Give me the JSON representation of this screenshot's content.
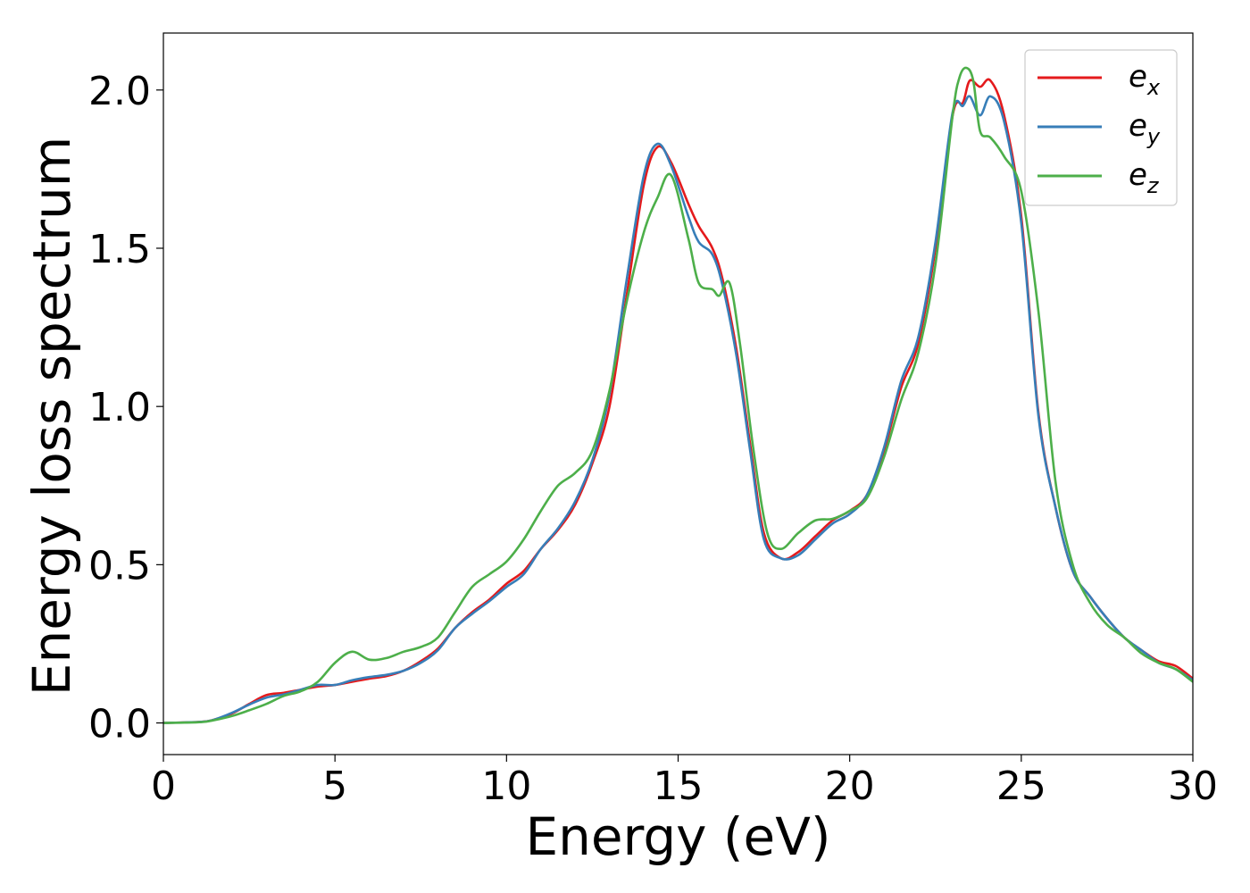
{
  "chart_data": {
    "type": "line",
    "title": "",
    "xlabel": "Energy (eV)",
    "ylabel": "Energy loss spectrum",
    "xlim": [
      0,
      30
    ],
    "ylim": [
      -0.1,
      2.18
    ],
    "x_ticks": [
      "0",
      "5",
      "10",
      "15",
      "20",
      "25",
      "30"
    ],
    "y_ticks": [
      "0.0",
      "0.5",
      "1.0",
      "1.5",
      "2.0"
    ],
    "grid": false,
    "legend_position": "top-right",
    "series": [
      {
        "name": "e",
        "sub": "x",
        "color": "#e41a1c",
        "points": [
          [
            0,
            0
          ],
          [
            1,
            0.003
          ],
          [
            1.4,
            0.008
          ],
          [
            2,
            0.03
          ],
          [
            2.5,
            0.06
          ],
          [
            3,
            0.088
          ],
          [
            3.5,
            0.095
          ],
          [
            4,
            0.105
          ],
          [
            4.5,
            0.115
          ],
          [
            5,
            0.12
          ],
          [
            5.5,
            0.13
          ],
          [
            6,
            0.14
          ],
          [
            6.5,
            0.148
          ],
          [
            7,
            0.165
          ],
          [
            7.5,
            0.195
          ],
          [
            8,
            0.235
          ],
          [
            8.5,
            0.3
          ],
          [
            9,
            0.35
          ],
          [
            9.5,
            0.39
          ],
          [
            10,
            0.44
          ],
          [
            10.5,
            0.48
          ],
          [
            11,
            0.55
          ],
          [
            11.5,
            0.61
          ],
          [
            12,
            0.69
          ],
          [
            12.5,
            0.82
          ],
          [
            13,
            1.0
          ],
          [
            13.5,
            1.35
          ],
          [
            14,
            1.7
          ],
          [
            14.4,
            1.82
          ],
          [
            14.8,
            1.77
          ],
          [
            15.3,
            1.64
          ],
          [
            15.6,
            1.57
          ],
          [
            16,
            1.5
          ],
          [
            16.3,
            1.4
          ],
          [
            16.7,
            1.18
          ],
          [
            17.1,
            0.88
          ],
          [
            17.5,
            0.6
          ],
          [
            18,
            0.52
          ],
          [
            18.5,
            0.54
          ],
          [
            19,
            0.59
          ],
          [
            19.5,
            0.64
          ],
          [
            20,
            0.67
          ],
          [
            20.5,
            0.72
          ],
          [
            21,
            0.86
          ],
          [
            21.5,
            1.06
          ],
          [
            22,
            1.2
          ],
          [
            22.5,
            1.5
          ],
          [
            23,
            1.92
          ],
          [
            23.3,
            1.96
          ],
          [
            23.5,
            2.03
          ],
          [
            23.8,
            2.01
          ],
          [
            24.1,
            2.03
          ],
          [
            24.5,
            1.92
          ],
          [
            25,
            1.6
          ],
          [
            25.5,
            0.98
          ],
          [
            26,
            0.68
          ],
          [
            26.5,
            0.48
          ],
          [
            27,
            0.4
          ],
          [
            27.5,
            0.33
          ],
          [
            28,
            0.27
          ],
          [
            28.5,
            0.23
          ],
          [
            29,
            0.195
          ],
          [
            29.5,
            0.18
          ],
          [
            30,
            0.14
          ]
        ]
      },
      {
        "name": "e",
        "sub": "y",
        "color": "#377eb8",
        "points": [
          [
            0,
            0
          ],
          [
            1,
            0.003
          ],
          [
            1.4,
            0.008
          ],
          [
            2,
            0.032
          ],
          [
            2.5,
            0.058
          ],
          [
            3,
            0.08
          ],
          [
            3.5,
            0.09
          ],
          [
            4,
            0.105
          ],
          [
            4.5,
            0.12
          ],
          [
            5,
            0.12
          ],
          [
            5.5,
            0.135
          ],
          [
            6,
            0.145
          ],
          [
            6.5,
            0.152
          ],
          [
            7,
            0.165
          ],
          [
            7.5,
            0.19
          ],
          [
            8,
            0.23
          ],
          [
            8.5,
            0.3
          ],
          [
            9,
            0.345
          ],
          [
            9.5,
            0.385
          ],
          [
            10,
            0.43
          ],
          [
            10.5,
            0.47
          ],
          [
            11,
            0.55
          ],
          [
            11.5,
            0.615
          ],
          [
            12,
            0.7
          ],
          [
            12.5,
            0.83
          ],
          [
            13,
            1.04
          ],
          [
            13.5,
            1.4
          ],
          [
            14,
            1.73
          ],
          [
            14.4,
            1.83
          ],
          [
            14.8,
            1.76
          ],
          [
            15.3,
            1.6
          ],
          [
            15.6,
            1.52
          ],
          [
            16,
            1.48
          ],
          [
            16.3,
            1.38
          ],
          [
            16.7,
            1.16
          ],
          [
            17.1,
            0.86
          ],
          [
            17.5,
            0.58
          ],
          [
            18,
            0.52
          ],
          [
            18.5,
            0.53
          ],
          [
            19,
            0.58
          ],
          [
            19.5,
            0.63
          ],
          [
            20,
            0.66
          ],
          [
            20.5,
            0.72
          ],
          [
            21,
            0.87
          ],
          [
            21.5,
            1.08
          ],
          [
            22,
            1.22
          ],
          [
            22.5,
            1.52
          ],
          [
            23,
            1.93
          ],
          [
            23.3,
            1.95
          ],
          [
            23.5,
            1.98
          ],
          [
            23.8,
            1.92
          ],
          [
            24.1,
            1.98
          ],
          [
            24.5,
            1.9
          ],
          [
            25,
            1.58
          ],
          [
            25.5,
            0.97
          ],
          [
            26,
            0.68
          ],
          [
            26.5,
            0.48
          ],
          [
            27,
            0.4
          ],
          [
            27.5,
            0.33
          ],
          [
            28,
            0.27
          ],
          [
            28.5,
            0.23
          ],
          [
            29,
            0.19
          ],
          [
            29.5,
            0.17
          ],
          [
            30,
            0.135
          ]
        ]
      },
      {
        "name": "e",
        "sub": "z",
        "color": "#4daf4a",
        "points": [
          [
            0,
            0
          ],
          [
            1,
            0.002
          ],
          [
            1.4,
            0.007
          ],
          [
            2,
            0.022
          ],
          [
            2.5,
            0.04
          ],
          [
            3,
            0.06
          ],
          [
            3.5,
            0.085
          ],
          [
            4,
            0.1
          ],
          [
            4.5,
            0.13
          ],
          [
            5,
            0.19
          ],
          [
            5.5,
            0.225
          ],
          [
            6,
            0.2
          ],
          [
            6.5,
            0.205
          ],
          [
            7,
            0.225
          ],
          [
            7.5,
            0.24
          ],
          [
            8,
            0.27
          ],
          [
            8.5,
            0.35
          ],
          [
            9,
            0.43
          ],
          [
            9.5,
            0.47
          ],
          [
            10,
            0.51
          ],
          [
            10.5,
            0.58
          ],
          [
            11,
            0.67
          ],
          [
            11.5,
            0.75
          ],
          [
            12,
            0.79
          ],
          [
            12.5,
            0.86
          ],
          [
            13,
            1.05
          ],
          [
            13.5,
            1.33
          ],
          [
            14,
            1.55
          ],
          [
            14.4,
            1.66
          ],
          [
            14.8,
            1.73
          ],
          [
            15.3,
            1.53
          ],
          [
            15.6,
            1.39
          ],
          [
            16,
            1.37
          ],
          [
            16.2,
            1.35
          ],
          [
            16.5,
            1.39
          ],
          [
            16.8,
            1.2
          ],
          [
            17.2,
            0.86
          ],
          [
            17.6,
            0.6
          ],
          [
            18,
            0.55
          ],
          [
            18.5,
            0.6
          ],
          [
            19,
            0.64
          ],
          [
            19.5,
            0.645
          ],
          [
            20,
            0.67
          ],
          [
            20.5,
            0.71
          ],
          [
            21,
            0.84
          ],
          [
            21.5,
            1.02
          ],
          [
            22,
            1.17
          ],
          [
            22.5,
            1.45
          ],
          [
            23,
            1.92
          ],
          [
            23.2,
            2.04
          ],
          [
            23.4,
            2.07
          ],
          [
            23.6,
            2.03
          ],
          [
            23.8,
            1.87
          ],
          [
            24.1,
            1.85
          ],
          [
            24.5,
            1.79
          ],
          [
            25,
            1.68
          ],
          [
            25.5,
            1.3
          ],
          [
            26,
            0.76
          ],
          [
            26.5,
            0.5
          ],
          [
            27,
            0.38
          ],
          [
            27.5,
            0.31
          ],
          [
            28,
            0.27
          ],
          [
            28.5,
            0.22
          ],
          [
            29,
            0.19
          ],
          [
            29.5,
            0.17
          ],
          [
            30,
            0.13
          ]
        ]
      }
    ]
  }
}
